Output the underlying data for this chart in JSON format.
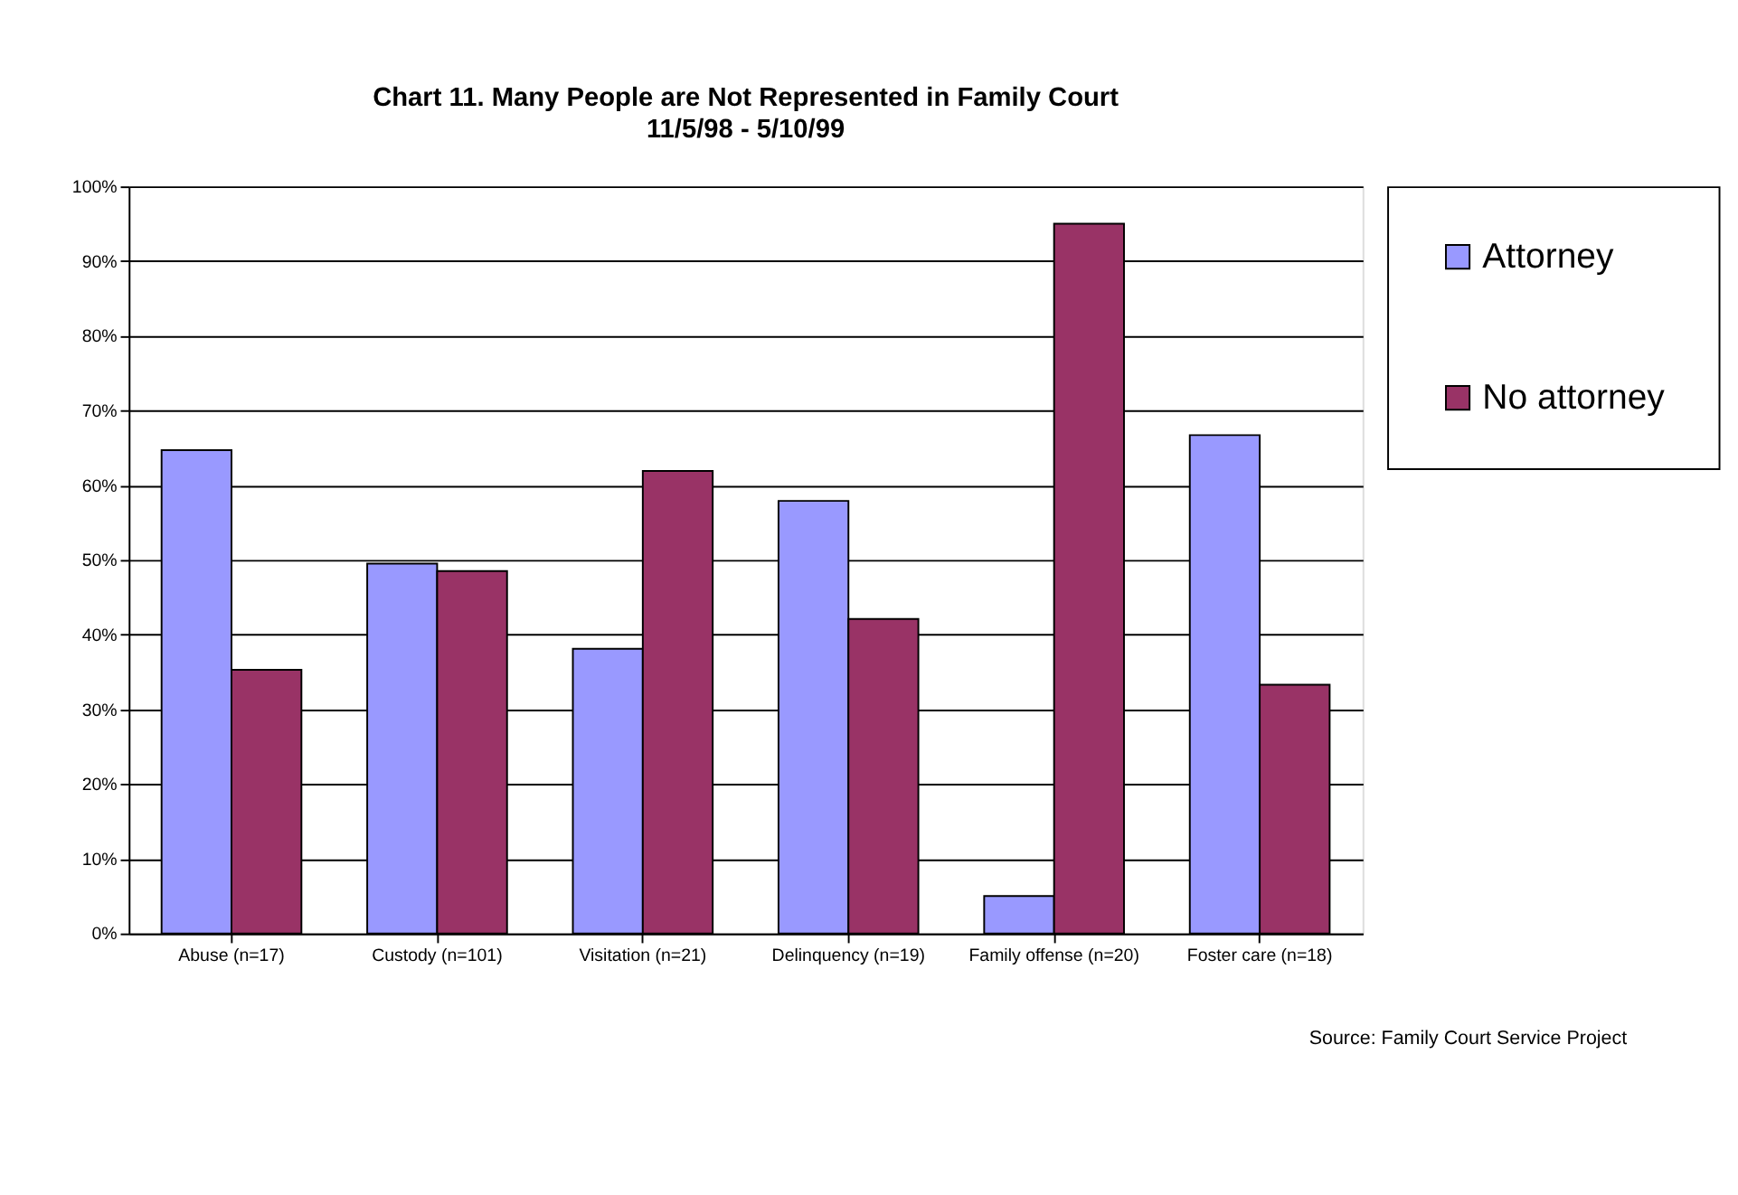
{
  "chart_data": {
    "type": "bar",
    "title": "Chart 11. Many People are Not Represented in Family Court",
    "subtitle": "11/5/98 - 5/10/99",
    "categories": [
      "Abuse (n=17)",
      "Custody (n=101)",
      "Visitation (n=21)",
      "Delinquency (n=19)",
      "Family offense (n=20)",
      "Foster care (n=18)"
    ],
    "series": [
      {
        "name": "Attorney",
        "color": "#9999ff",
        "values": [
          64.7,
          49.5,
          38.1,
          57.9,
          5,
          66.7
        ]
      },
      {
        "name": "No attorney",
        "color": "#993366",
        "values": [
          35.3,
          48.5,
          61.9,
          42.1,
          95,
          33.3
        ]
      }
    ],
    "ylim": [
      0,
      100
    ],
    "yticks": [
      {
        "value": 0,
        "label": "0%"
      },
      {
        "value": 10,
        "label": "10%"
      },
      {
        "value": 20,
        "label": "20%"
      },
      {
        "value": 30,
        "label": "30%"
      },
      {
        "value": 40,
        "label": "40%"
      },
      {
        "value": 50,
        "label": "50%"
      },
      {
        "value": 60,
        "label": "60%"
      },
      {
        "value": 70,
        "label": "70%"
      },
      {
        "value": 80,
        "label": "80%"
      },
      {
        "value": 90,
        "label": "90%"
      },
      {
        "value": 100,
        "label": "100%"
      }
    ],
    "grid": "y",
    "legend": "right",
    "annotations": [
      "Source: Family Court Service Project"
    ]
  }
}
